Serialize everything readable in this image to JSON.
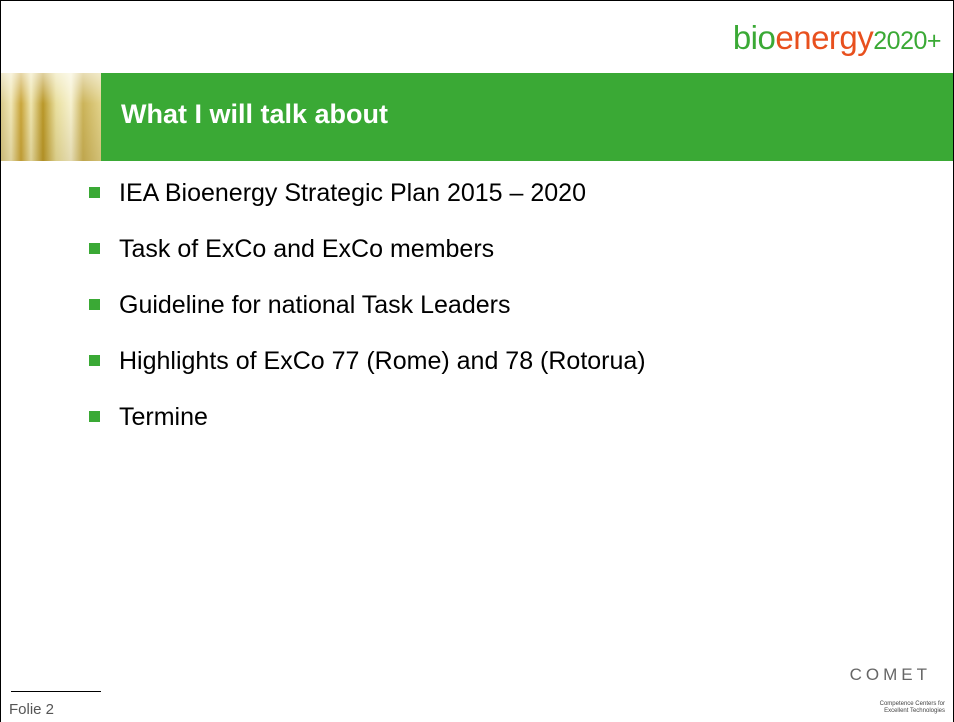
{
  "header": {
    "logo": {
      "part1": "bio",
      "part2": "energy",
      "part3": "2020+"
    }
  },
  "title": "What I will talk about",
  "bullets": [
    "IEA Bioenergy Strategic Plan 2015 – 2020",
    "Task of ExCo and ExCo members",
    "Guideline for national Task Leaders",
    "Highlights of ExCo 77 (Rome) and 78 (Rotorua)",
    "Termine"
  ],
  "footer": {
    "slide_label": "Folie 2",
    "comet_logo": "COMET",
    "comet_tagline": [
      "Competence Centers for",
      "Excellent Technologies"
    ]
  }
}
